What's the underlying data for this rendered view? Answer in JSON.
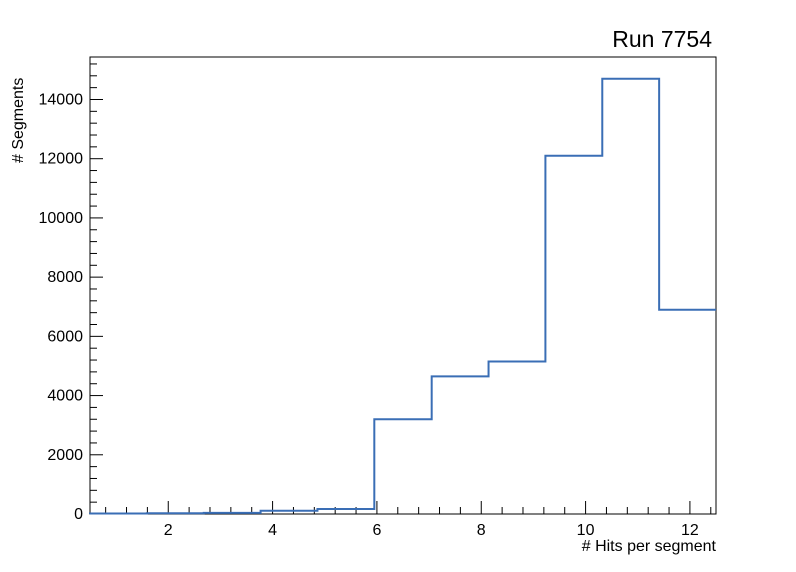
{
  "chart_data": {
    "type": "histogram",
    "title": "Run 7754",
    "xlabel": "# Hits per segment",
    "ylabel": "# Segments",
    "xlim": [
      0.5,
      12.5
    ],
    "ylim": [
      0,
      15435
    ],
    "x_ticks": [
      2,
      4,
      6,
      8,
      10,
      12
    ],
    "y_ticks": [
      0,
      2000,
      4000,
      6000,
      8000,
      10000,
      12000,
      14000
    ],
    "x_minor_step": 0.4,
    "y_minor_step": 400,
    "bin_edges": [
      0.5,
      1.59,
      2.68,
      3.77,
      4.86,
      5.95,
      7.05,
      8.14,
      9.23,
      10.32,
      11.41,
      12.5
    ],
    "counts": [
      15,
      25,
      40,
      110,
      170,
      3200,
      4650,
      5150,
      12100,
      14700,
      6900
    ],
    "line_color": "#3a6eb5",
    "frame_color": "#000000",
    "background": "#ffffff",
    "grid": false,
    "legend": "none",
    "tick_side": "inside-left-bottom"
  }
}
